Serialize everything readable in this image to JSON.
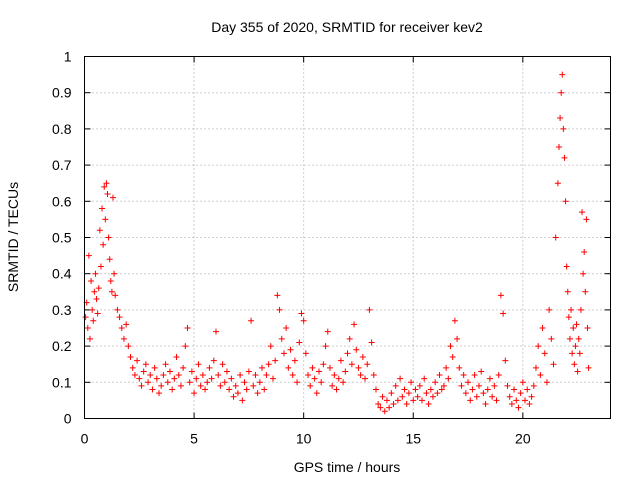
{
  "chart_data": {
    "type": "scatter",
    "title": "Day 355 of 2020, SRMTID for receiver kev2",
    "xlabel": "GPS time / hours",
    "ylabel": "SRMTID / TECUs",
    "xlim": [
      0,
      24
    ],
    "ylim": [
      0,
      1
    ],
    "xticks": [
      0,
      5,
      10,
      15,
      20
    ],
    "xtick_labels": [
      "0",
      "5",
      "10",
      "15",
      "20"
    ],
    "yticks": [
      0,
      0.1,
      0.2,
      0.3,
      0.4,
      0.5,
      0.6,
      0.7,
      0.8,
      0.9,
      1
    ],
    "ytick_labels": [
      "0",
      "0.1",
      "0.2",
      "0.3",
      "0.4",
      "0.5",
      "0.6",
      "0.7",
      "0.8",
      "0.9",
      "1"
    ],
    "grid": true,
    "marker": "+",
    "color": "#ff0000",
    "series": [
      {
        "name": "kev2",
        "points": [
          [
            0.05,
            0.28
          ],
          [
            0.1,
            0.32
          ],
          [
            0.15,
            0.25
          ],
          [
            0.2,
            0.45
          ],
          [
            0.25,
            0.22
          ],
          [
            0.3,
            0.38
          ],
          [
            0.35,
            0.3
          ],
          [
            0.4,
            0.27
          ],
          [
            0.45,
            0.35
          ],
          [
            0.5,
            0.4
          ],
          [
            0.55,
            0.33
          ],
          [
            0.6,
            0.29
          ],
          [
            0.65,
            0.36
          ],
          [
            0.7,
            0.52
          ],
          [
            0.75,
            0.42
          ],
          [
            0.8,
            0.58
          ],
          [
            0.85,
            0.48
          ],
          [
            0.9,
            0.64
          ],
          [
            0.95,
            0.55
          ],
          [
            1.0,
            0.65
          ],
          [
            1.05,
            0.62
          ],
          [
            1.1,
            0.5
          ],
          [
            1.15,
            0.44
          ],
          [
            1.2,
            0.38
          ],
          [
            1.25,
            0.35
          ],
          [
            1.3,
            0.61
          ],
          [
            1.35,
            0.4
          ],
          [
            1.4,
            0.34
          ],
          [
            1.5,
            0.3
          ],
          [
            1.6,
            0.28
          ],
          [
            1.7,
            0.25
          ],
          [
            1.8,
            0.22
          ],
          [
            1.9,
            0.26
          ],
          [
            2.0,
            0.2
          ],
          [
            2.1,
            0.17
          ],
          [
            2.2,
            0.14
          ],
          [
            2.3,
            0.12
          ],
          [
            2.4,
            0.16
          ],
          [
            2.5,
            0.11
          ],
          [
            2.6,
            0.09
          ],
          [
            2.7,
            0.13
          ],
          [
            2.8,
            0.15
          ],
          [
            2.9,
            0.1
          ],
          [
            3.0,
            0.12
          ],
          [
            3.1,
            0.08
          ],
          [
            3.2,
            0.14
          ],
          [
            3.3,
            0.11
          ],
          [
            3.4,
            0.07
          ],
          [
            3.5,
            0.09
          ],
          [
            3.6,
            0.12
          ],
          [
            3.7,
            0.15
          ],
          [
            3.8,
            0.1
          ],
          [
            3.9,
            0.13
          ],
          [
            4.0,
            0.08
          ],
          [
            4.1,
            0.11
          ],
          [
            4.2,
            0.17
          ],
          [
            4.3,
            0.12
          ],
          [
            4.4,
            0.09
          ],
          [
            4.5,
            0.14
          ],
          [
            4.6,
            0.2
          ],
          [
            4.7,
            0.25
          ],
          [
            4.8,
            0.1
          ],
          [
            4.9,
            0.13
          ],
          [
            5.0,
            0.07
          ],
          [
            5.1,
            0.11
          ],
          [
            5.2,
            0.15
          ],
          [
            5.3,
            0.09
          ],
          [
            5.4,
            0.12
          ],
          [
            5.5,
            0.08
          ],
          [
            5.6,
            0.1
          ],
          [
            5.7,
            0.14
          ],
          [
            5.8,
            0.11
          ],
          [
            5.9,
            0.16
          ],
          [
            6.0,
            0.24
          ],
          [
            6.1,
            0.12
          ],
          [
            6.2,
            0.09
          ],
          [
            6.3,
            0.15
          ],
          [
            6.4,
            0.1
          ],
          [
            6.5,
            0.13
          ],
          [
            6.6,
            0.08
          ],
          [
            6.7,
            0.11
          ],
          [
            6.8,
            0.06
          ],
          [
            6.9,
            0.09
          ],
          [
            7.0,
            0.07
          ],
          [
            7.1,
            0.12
          ],
          [
            7.2,
            0.05
          ],
          [
            7.3,
            0.1
          ],
          [
            7.4,
            0.08
          ],
          [
            7.5,
            0.13
          ],
          [
            7.6,
            0.27
          ],
          [
            7.7,
            0.09
          ],
          [
            7.8,
            0.12
          ],
          [
            7.9,
            0.07
          ],
          [
            8.0,
            0.1
          ],
          [
            8.1,
            0.14
          ],
          [
            8.2,
            0.08
          ],
          [
            8.3,
            0.12
          ],
          [
            8.4,
            0.15
          ],
          [
            8.5,
            0.2
          ],
          [
            8.6,
            0.11
          ],
          [
            8.7,
            0.16
          ],
          [
            8.8,
            0.34
          ],
          [
            8.9,
            0.3
          ],
          [
            9.0,
            0.22
          ],
          [
            9.1,
            0.18
          ],
          [
            9.2,
            0.25
          ],
          [
            9.3,
            0.14
          ],
          [
            9.4,
            0.19
          ],
          [
            9.5,
            0.12
          ],
          [
            9.6,
            0.16
          ],
          [
            9.7,
            0.1
          ],
          [
            9.8,
            0.21
          ],
          [
            9.9,
            0.29
          ],
          [
            10.0,
            0.27
          ],
          [
            10.1,
            0.18
          ],
          [
            10.2,
            0.12
          ],
          [
            10.3,
            0.09
          ],
          [
            10.4,
            0.14
          ],
          [
            10.5,
            0.11
          ],
          [
            10.6,
            0.07
          ],
          [
            10.7,
            0.13
          ],
          [
            10.8,
            0.1
          ],
          [
            10.9,
            0.15
          ],
          [
            11.0,
            0.2
          ],
          [
            11.1,
            0.24
          ],
          [
            11.2,
            0.14
          ],
          [
            11.3,
            0.09
          ],
          [
            11.4,
            0.12
          ],
          [
            11.5,
            0.08
          ],
          [
            11.6,
            0.11
          ],
          [
            11.7,
            0.16
          ],
          [
            11.8,
            0.1
          ],
          [
            11.9,
            0.13
          ],
          [
            12.0,
            0.18
          ],
          [
            12.1,
            0.22
          ],
          [
            12.2,
            0.15
          ],
          [
            12.3,
            0.26
          ],
          [
            12.4,
            0.19
          ],
          [
            12.5,
            0.14
          ],
          [
            12.6,
            0.12
          ],
          [
            12.7,
            0.17
          ],
          [
            12.8,
            0.11
          ],
          [
            12.9,
            0.15
          ],
          [
            13.0,
            0.3
          ],
          [
            13.1,
            0.21
          ],
          [
            13.2,
            0.12
          ],
          [
            13.3,
            0.08
          ],
          [
            13.4,
            0.04
          ],
          [
            13.5,
            0.03
          ],
          [
            13.6,
            0.06
          ],
          [
            13.7,
            0.02
          ],
          [
            13.8,
            0.05
          ],
          [
            13.9,
            0.03
          ],
          [
            14.0,
            0.07
          ],
          [
            14.1,
            0.04
          ],
          [
            14.2,
            0.09
          ],
          [
            14.3,
            0.05
          ],
          [
            14.4,
            0.11
          ],
          [
            14.5,
            0.06
          ],
          [
            14.6,
            0.08
          ],
          [
            14.7,
            0.04
          ],
          [
            14.8,
            0.07
          ],
          [
            14.9,
            0.1
          ],
          [
            15.0,
            0.05
          ],
          [
            15.1,
            0.08
          ],
          [
            15.2,
            0.06
          ],
          [
            15.3,
            0.09
          ],
          [
            15.4,
            0.05
          ],
          [
            15.5,
            0.11
          ],
          [
            15.6,
            0.07
          ],
          [
            15.7,
            0.04
          ],
          [
            15.8,
            0.08
          ],
          [
            15.9,
            0.06
          ],
          [
            16.0,
            0.1
          ],
          [
            16.1,
            0.07
          ],
          [
            16.2,
            0.12
          ],
          [
            16.3,
            0.08
          ],
          [
            16.4,
            0.09
          ],
          [
            16.5,
            0.14
          ],
          [
            16.6,
            0.11
          ],
          [
            16.7,
            0.2
          ],
          [
            16.8,
            0.17
          ],
          [
            16.9,
            0.27
          ],
          [
            17.0,
            0.22
          ],
          [
            17.1,
            0.14
          ],
          [
            17.2,
            0.09
          ],
          [
            17.3,
            0.12
          ],
          [
            17.4,
            0.07
          ],
          [
            17.5,
            0.1
          ],
          [
            17.6,
            0.05
          ],
          [
            17.7,
            0.08
          ],
          [
            17.8,
            0.12
          ],
          [
            17.9,
            0.06
          ],
          [
            18.0,
            0.09
          ],
          [
            18.1,
            0.13
          ],
          [
            18.2,
            0.07
          ],
          [
            18.3,
            0.04
          ],
          [
            18.4,
            0.08
          ],
          [
            18.5,
            0.11
          ],
          [
            18.6,
            0.06
          ],
          [
            18.7,
            0.09
          ],
          [
            18.8,
            0.05
          ],
          [
            18.9,
            0.12
          ],
          [
            19.0,
            0.34
          ],
          [
            19.1,
            0.29
          ],
          [
            19.2,
            0.16
          ],
          [
            19.3,
            0.09
          ],
          [
            19.4,
            0.06
          ],
          [
            19.5,
            0.04
          ],
          [
            19.6,
            0.08
          ],
          [
            19.7,
            0.05
          ],
          [
            19.8,
            0.03
          ],
          [
            19.9,
            0.07
          ],
          [
            20.0,
            0.1
          ],
          [
            20.1,
            0.05
          ],
          [
            20.2,
            0.08
          ],
          [
            20.3,
            0.04
          ],
          [
            20.4,
            0.06
          ],
          [
            20.5,
            0.09
          ],
          [
            20.6,
            0.14
          ],
          [
            20.7,
            0.2
          ],
          [
            20.8,
            0.12
          ],
          [
            20.9,
            0.25
          ],
          [
            21.0,
            0.18
          ],
          [
            21.1,
            0.1
          ],
          [
            21.2,
            0.3
          ],
          [
            21.3,
            0.22
          ],
          [
            21.4,
            0.15
          ],
          [
            21.5,
            0.5
          ],
          [
            21.6,
            0.65
          ],
          [
            21.65,
            0.75
          ],
          [
            21.7,
            0.83
          ],
          [
            21.75,
            0.9
          ],
          [
            21.8,
            0.95
          ],
          [
            21.85,
            0.8
          ],
          [
            21.9,
            0.72
          ],
          [
            21.95,
            0.6
          ],
          [
            22.0,
            0.42
          ],
          [
            22.05,
            0.35
          ],
          [
            22.1,
            0.28
          ],
          [
            22.15,
            0.22
          ],
          [
            22.2,
            0.3
          ],
          [
            22.25,
            0.18
          ],
          [
            22.3,
            0.25
          ],
          [
            22.35,
            0.15
          ],
          [
            22.4,
            0.2
          ],
          [
            22.45,
            0.26
          ],
          [
            22.5,
            0.13
          ],
          [
            22.55,
            0.22
          ],
          [
            22.6,
            0.18
          ],
          [
            22.65,
            0.3
          ],
          [
            22.7,
            0.57
          ],
          [
            22.75,
            0.4
          ],
          [
            22.8,
            0.46
          ],
          [
            22.85,
            0.35
          ],
          [
            22.9,
            0.55
          ],
          [
            22.95,
            0.25
          ],
          [
            23.0,
            0.14
          ]
        ]
      }
    ]
  }
}
